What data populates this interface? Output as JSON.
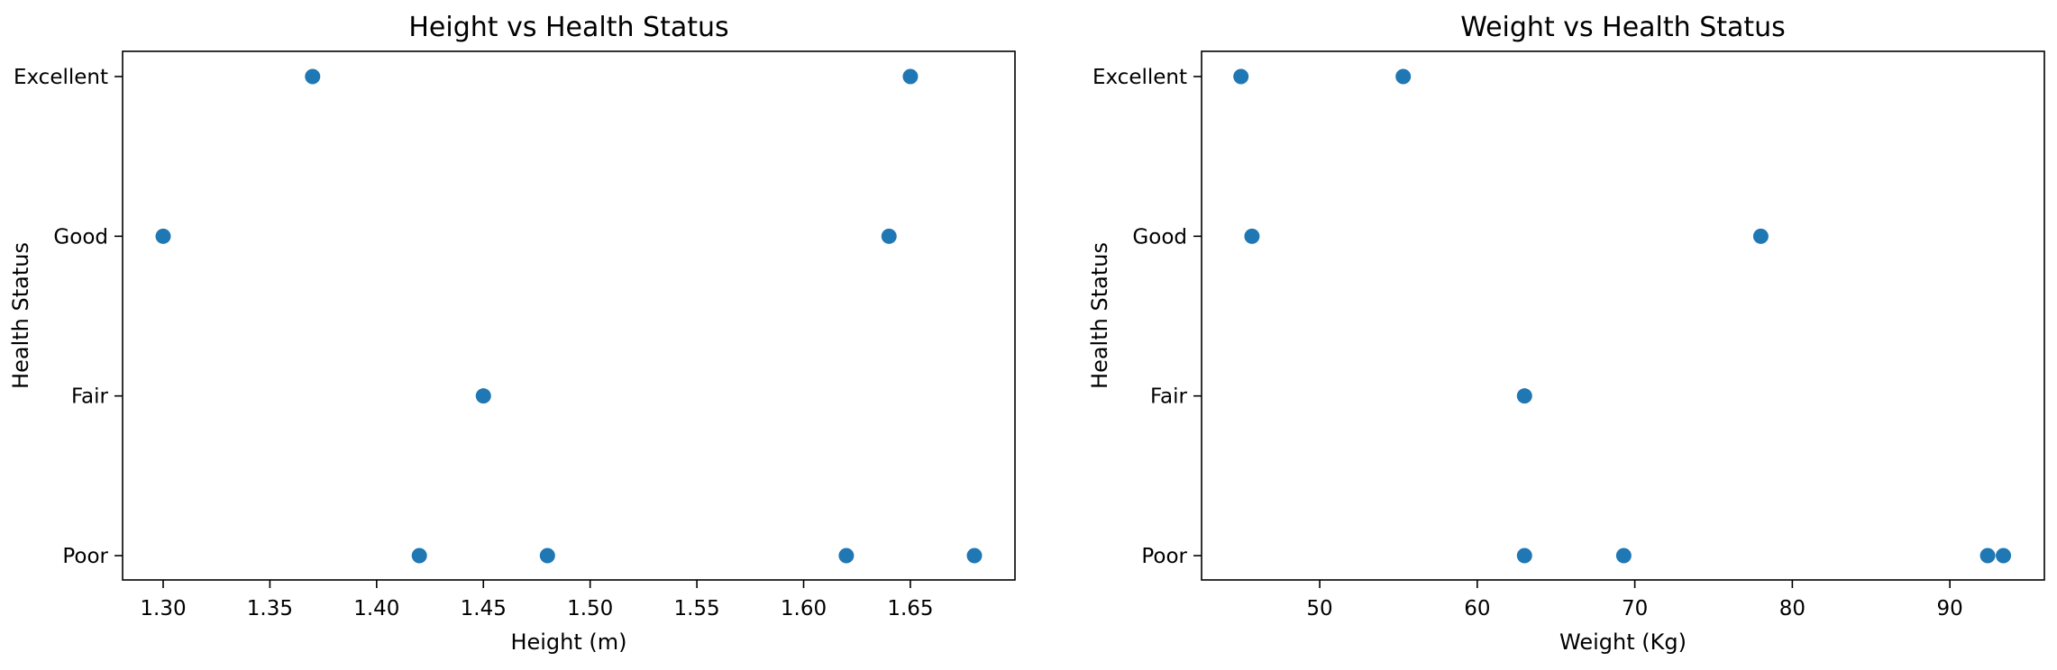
{
  "chart_data": [
    {
      "type": "scatter",
      "title": "Height vs Health Status",
      "xlabel": "Height (m)",
      "ylabel": "Health Status",
      "xlim": [
        1.281,
        1.699
      ],
      "x_ticks": [
        1.3,
        1.35,
        1.4,
        1.45,
        1.5,
        1.55,
        1.6,
        1.65
      ],
      "x_tick_labels": [
        "1.30",
        "1.35",
        "1.40",
        "1.45",
        "1.50",
        "1.55",
        "1.60",
        "1.65"
      ],
      "y_categories": [
        "Poor",
        "Fair",
        "Good",
        "Excellent"
      ],
      "grid": false,
      "marker_color": "#1f77b4",
      "points": [
        {
          "x": 1.37,
          "y": "Excellent"
        },
        {
          "x": 1.65,
          "y": "Excellent"
        },
        {
          "x": 1.3,
          "y": "Good"
        },
        {
          "x": 1.64,
          "y": "Good"
        },
        {
          "x": 1.45,
          "y": "Fair"
        },
        {
          "x": 1.42,
          "y": "Poor"
        },
        {
          "x": 1.48,
          "y": "Poor"
        },
        {
          "x": 1.62,
          "y": "Poor"
        },
        {
          "x": 1.68,
          "y": "Poor"
        }
      ]
    },
    {
      "type": "scatter",
      "title": "Weight vs Health Status",
      "xlabel": "Weight (Kg)",
      "ylabel": "Health Status",
      "xlim": [
        42.5,
        96.0
      ],
      "x_ticks": [
        50,
        60,
        70,
        80,
        90
      ],
      "x_tick_labels": [
        "50",
        "60",
        "70",
        "80",
        "90"
      ],
      "y_categories": [
        "Poor",
        "Fair",
        "Good",
        "Excellent"
      ],
      "grid": false,
      "marker_color": "#1f77b4",
      "points": [
        {
          "x": 45.0,
          "y": "Excellent"
        },
        {
          "x": 55.3,
          "y": "Excellent"
        },
        {
          "x": 45.7,
          "y": "Good"
        },
        {
          "x": 78.0,
          "y": "Good"
        },
        {
          "x": 63.0,
          "y": "Fair"
        },
        {
          "x": 63.0,
          "y": "Poor"
        },
        {
          "x": 69.3,
          "y": "Poor"
        },
        {
          "x": 92.4,
          "y": "Poor"
        },
        {
          "x": 93.4,
          "y": "Poor"
        }
      ]
    }
  ]
}
